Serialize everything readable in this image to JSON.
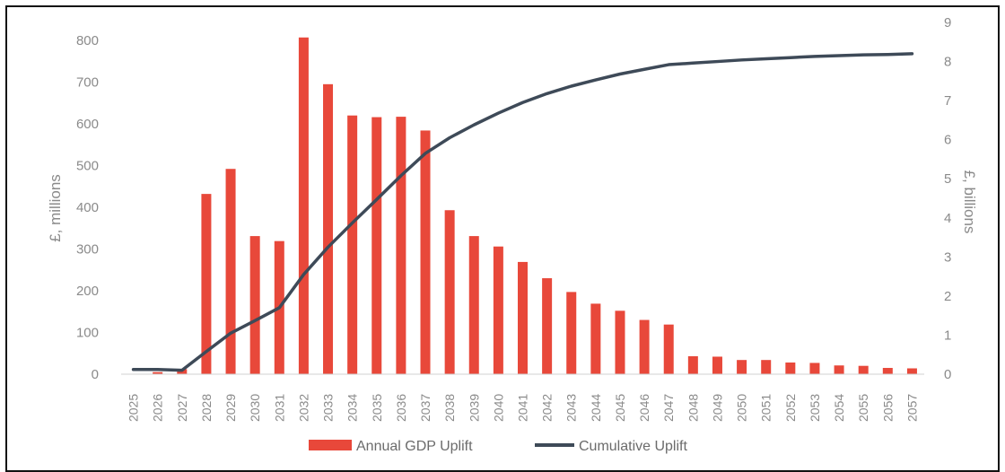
{
  "chart_data": {
    "type": "bar",
    "categories": [
      "2025",
      "2026",
      "2027",
      "2028",
      "2029",
      "2030",
      "2031",
      "2032",
      "2033",
      "2034",
      "2035",
      "2036",
      "2037",
      "2038",
      "2039",
      "2040",
      "2041",
      "2042",
      "2043",
      "2044",
      "2045",
      "2046",
      "2047",
      "2048",
      "2049",
      "2050",
      "2051",
      "2052",
      "2053",
      "2054",
      "2055",
      "2056",
      "2057"
    ],
    "series": [
      {
        "name": "Annual GDP Uplift",
        "type": "bar",
        "axis": "left",
        "color": "#e8483a",
        "values": [
          0,
          5,
          12,
          432,
          492,
          331,
          319,
          807,
          695,
          620,
          616,
          617,
          584,
          393,
          331,
          306,
          269,
          230,
          197,
          169,
          152,
          130,
          119,
          43,
          42,
          34,
          34,
          28,
          27,
          21,
          20,
          15,
          14
        ]
      },
      {
        "name": "Cumulative Uplift",
        "type": "line",
        "axis": "right",
        "color": "#3e4a58",
        "values": [
          0.12,
          0.12,
          0.1,
          0.58,
          1.05,
          1.37,
          1.7,
          2.55,
          3.25,
          3.87,
          4.47,
          5.08,
          5.65,
          6.05,
          6.38,
          6.68,
          6.95,
          7.18,
          7.37,
          7.53,
          7.68,
          7.8,
          7.92,
          7.96,
          8.0,
          8.04,
          8.07,
          8.1,
          8.13,
          8.15,
          8.17,
          8.18,
          8.2
        ]
      }
    ],
    "ylabel": "£, millions",
    "ylabel_right": "£, billions",
    "ylim": [
      0,
      800
    ],
    "ylim_right": [
      0,
      9
    ],
    "yticks": [
      0,
      100,
      200,
      300,
      400,
      500,
      600,
      700,
      800
    ],
    "yticks_right": [
      0,
      1,
      2,
      3,
      4,
      5,
      6,
      7,
      8,
      9
    ],
    "grid": false,
    "legend_position": "bottom"
  }
}
